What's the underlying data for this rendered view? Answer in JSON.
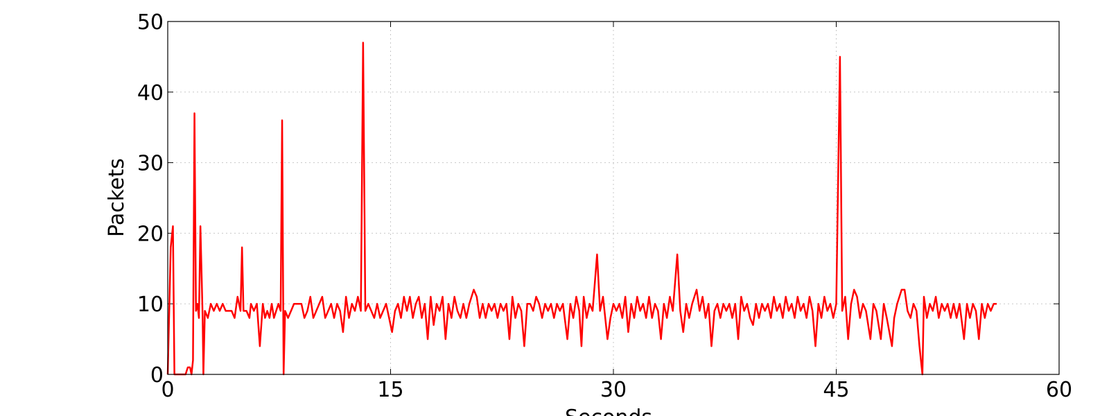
{
  "chart_data": {
    "type": "line",
    "xlabel": "Seconds",
    "ylabel": "Packets",
    "xlim": [
      0,
      60
    ],
    "ylim": [
      0,
      50
    ],
    "xticks": [
      0,
      15,
      30,
      45,
      60
    ],
    "yticks": [
      0,
      10,
      20,
      30,
      40,
      50
    ],
    "grid": true,
    "series": [
      {
        "color": "#ff0000",
        "x": [
          0,
          0.2,
          0.35,
          0.45,
          1.2,
          1.35,
          1.5,
          1.6,
          1.7,
          1.8,
          1.9,
          2.0,
          2.1,
          2.2,
          2.35,
          2.4,
          2.5,
          2.7,
          2.9,
          3.1,
          3.3,
          3.5,
          3.7,
          3.9,
          4.1,
          4.3,
          4.5,
          4.7,
          4.9,
          5.0,
          5.1,
          5.3,
          5.5,
          5.6,
          5.8,
          6.0,
          6.2,
          6.4,
          6.55,
          6.7,
          6.85,
          7.0,
          7.15,
          7.3,
          7.45,
          7.6,
          7.7,
          7.8,
          7.9,
          8.1,
          8.3,
          8.5,
          8.7,
          9.0,
          9.2,
          9.4,
          9.6,
          9.8,
          10.0,
          10.2,
          10.4,
          10.6,
          10.8,
          11.0,
          11.2,
          11.4,
          11.6,
          11.8,
          12.0,
          12.2,
          12.4,
          12.6,
          12.8,
          13.0,
          13.15,
          13.3,
          13.5,
          13.7,
          13.9,
          14.1,
          14.3,
          14.5,
          14.7,
          14.9,
          15.1,
          15.3,
          15.5,
          15.7,
          15.9,
          16.1,
          16.3,
          16.5,
          16.7,
          16.9,
          17.1,
          17.3,
          17.5,
          17.7,
          17.9,
          18.1,
          18.3,
          18.5,
          18.7,
          18.9,
          19.1,
          19.3,
          19.5,
          19.7,
          19.9,
          20.1,
          20.3,
          20.6,
          20.8,
          21.0,
          21.2,
          21.4,
          21.6,
          21.8,
          22.0,
          22.2,
          22.4,
          22.6,
          22.8,
          23.0,
          23.2,
          23.4,
          23.6,
          23.8,
          24.0,
          24.2,
          24.4,
          24.6,
          24.8,
          25.0,
          25.2,
          25.4,
          25.6,
          25.8,
          26.0,
          26.2,
          26.4,
          26.6,
          26.9,
          27.1,
          27.3,
          27.5,
          27.7,
          27.85,
          28.0,
          28.2,
          28.4,
          28.6,
          28.9,
          29.1,
          29.3,
          29.6,
          29.8,
          30.0,
          30.2,
          30.4,
          30.6,
          30.8,
          31.0,
          31.2,
          31.4,
          31.6,
          31.8,
          32.0,
          32.2,
          32.4,
          32.6,
          32.8,
          33.0,
          33.2,
          33.4,
          33.6,
          33.8,
          34.0,
          34.3,
          34.5,
          34.7,
          34.9,
          35.1,
          35.3,
          35.6,
          35.8,
          36.0,
          36.2,
          36.4,
          36.6,
          36.8,
          37.0,
          37.2,
          37.4,
          37.6,
          37.8,
          38.0,
          38.2,
          38.4,
          38.6,
          38.8,
          39.0,
          39.2,
          39.4,
          39.6,
          39.8,
          40.0,
          40.2,
          40.4,
          40.6,
          40.8,
          41.0,
          41.2,
          41.4,
          41.6,
          41.8,
          42.0,
          42.2,
          42.4,
          42.6,
          42.8,
          43.0,
          43.2,
          43.4,
          43.6,
          43.8,
          44.0,
          44.2,
          44.4,
          44.6,
          44.8,
          45.0,
          45.25,
          45.4,
          45.6,
          45.8,
          46.0,
          46.2,
          46.4,
          46.6,
          46.8,
          47.0,
          47.3,
          47.5,
          47.7,
          48.0,
          48.2,
          48.4,
          48.75,
          48.9,
          49.1,
          49.4,
          49.6,
          49.8,
          50.0,
          50.2,
          50.4,
          50.6,
          50.8,
          50.9,
          51.1,
          51.3,
          51.5,
          51.7,
          51.9,
          52.1,
          52.3,
          52.5,
          52.7,
          52.9,
          53.1,
          53.3,
          53.6,
          53.8,
          54.0,
          54.2,
          54.4,
          54.6,
          54.8,
          55.0,
          55.2,
          55.4,
          55.6,
          55.8
        ],
        "values": [
          0,
          18,
          21,
          0,
          0,
          1,
          1,
          0,
          2,
          37,
          9,
          10,
          8,
          21,
          8,
          0,
          9,
          8,
          10,
          9,
          10,
          9,
          10,
          9,
          9,
          9,
          8,
          11,
          9,
          18,
          9,
          9,
          8,
          10,
          9,
          10,
          4,
          10,
          8,
          9,
          8,
          10,
          8,
          9,
          10,
          9,
          36,
          0,
          9,
          8,
          9,
          10,
          10,
          10,
          8,
          9,
          11,
          8,
          9,
          10,
          11,
          8,
          9,
          10,
          8,
          10,
          9,
          6,
          11,
          8,
          10,
          9,
          11,
          9,
          47,
          9,
          10,
          9,
          8,
          10,
          8,
          9,
          10,
          8,
          6,
          9,
          10,
          8,
          11,
          9,
          11,
          8,
          10,
          11,
          8,
          10,
          5,
          11,
          7,
          10,
          9,
          11,
          5,
          10,
          8,
          11,
          9,
          8,
          10,
          8,
          10,
          12,
          11,
          8,
          10,
          8,
          10,
          9,
          10,
          8,
          10,
          9,
          10,
          5,
          11,
          8,
          10,
          9,
          4,
          10,
          10,
          9,
          11,
          10,
          8,
          10,
          9,
          10,
          8,
          10,
          9,
          10,
          5,
          10,
          8,
          11,
          9,
          4,
          11,
          8,
          10,
          9,
          17,
          9,
          11,
          5,
          8,
          10,
          9,
          10,
          8,
          11,
          6,
          10,
          8,
          11,
          9,
          10,
          8,
          11,
          8,
          10,
          9,
          5,
          10,
          8,
          11,
          9,
          17,
          9,
          6,
          10,
          8,
          10,
          12,
          9,
          11,
          8,
          10,
          4,
          9,
          10,
          8,
          10,
          9,
          10,
          8,
          10,
          5,
          11,
          9,
          10,
          8,
          7,
          10,
          8,
          10,
          9,
          10,
          8,
          11,
          9,
          10,
          8,
          11,
          9,
          10,
          8,
          11,
          9,
          10,
          8,
          11,
          9,
          4,
          10,
          8,
          11,
          9,
          10,
          8,
          10,
          45,
          9,
          11,
          5,
          10,
          12,
          11,
          8,
          10,
          9,
          5,
          10,
          9,
          5,
          10,
          8,
          4,
          8,
          10,
          12,
          12,
          9,
          8,
          10,
          9,
          4,
          0,
          11,
          8,
          10,
          9,
          11,
          8,
          10,
          9,
          10,
          8,
          10,
          8,
          10,
          5,
          10,
          8,
          10,
          9,
          5,
          10,
          8,
          10,
          9,
          10,
          10
        ]
      }
    ]
  }
}
